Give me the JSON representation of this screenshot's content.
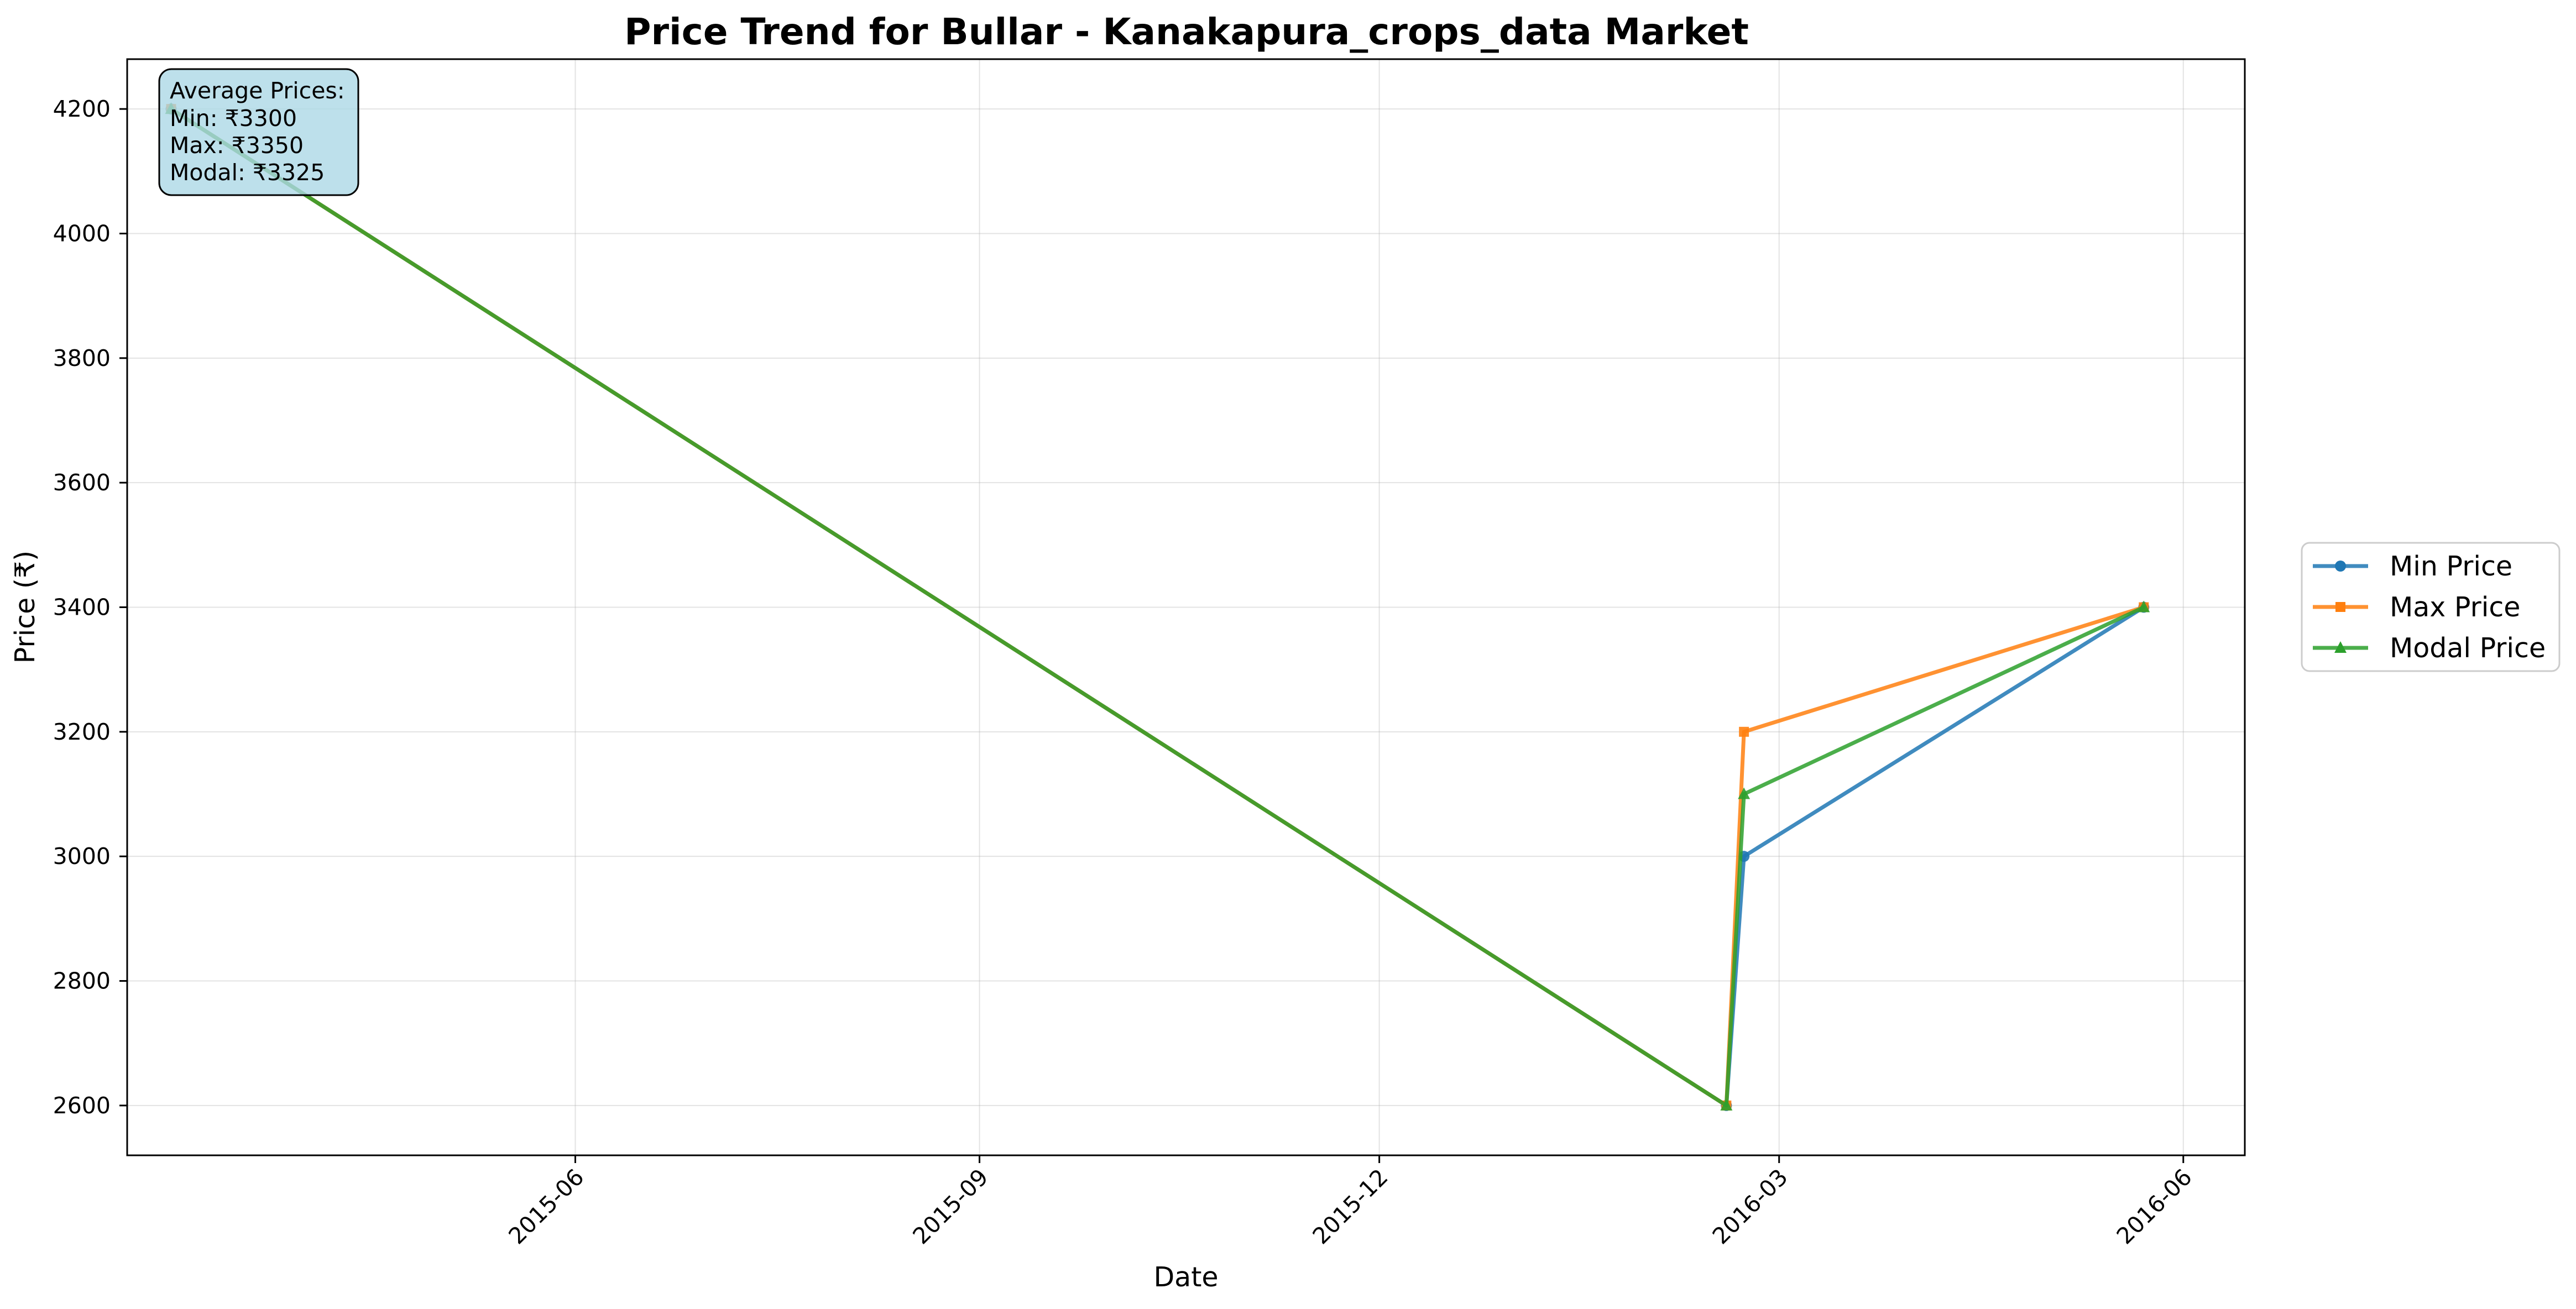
{
  "chart_data": {
    "type": "line",
    "title": "Price Trend for Bullar - Kanakapura_crops_data Market",
    "xlabel": "Date",
    "ylabel": "Price (₹)",
    "x_type": "date",
    "xlim": [
      "2015-02-19",
      "2016-06-15"
    ],
    "ylim": [
      2520,
      4280
    ],
    "x_ticks": [
      {
        "date": "2015-06-01",
        "label": "2015-06"
      },
      {
        "date": "2015-09-01",
        "label": "2015-09"
      },
      {
        "date": "2015-12-01",
        "label": "2015-12"
      },
      {
        "date": "2016-03-01",
        "label": "2016-03"
      },
      {
        "date": "2016-06-01",
        "label": "2016-06"
      }
    ],
    "y_ticks": [
      2600,
      2800,
      3000,
      3200,
      3400,
      3600,
      3800,
      4000,
      4200
    ],
    "grid": true,
    "legend_position": "outside-right",
    "series": [
      {
        "name": "Min Price",
        "color": "#1f77b4",
        "marker": "circle",
        "points": [
          [
            "2015-03-01",
            4200
          ],
          [
            "2016-02-18",
            2600
          ],
          [
            "2016-02-22",
            3000
          ],
          [
            "2016-05-23",
            3400
          ]
        ]
      },
      {
        "name": "Max Price",
        "color": "#ff7f0e",
        "marker": "square",
        "points": [
          [
            "2015-03-01",
            4200
          ],
          [
            "2016-02-18",
            2600
          ],
          [
            "2016-02-22",
            3200
          ],
          [
            "2016-05-23",
            3400
          ]
        ]
      },
      {
        "name": "Modal Price",
        "color": "#2ca02c",
        "marker": "triangle",
        "points": [
          [
            "2015-03-01",
            4200
          ],
          [
            "2016-02-18",
            2600
          ],
          [
            "2016-02-22",
            3100
          ],
          [
            "2016-05-23",
            3400
          ]
        ]
      }
    ],
    "annotation": {
      "lines": [
        "Average Prices:",
        "Min: ₹3300",
        "Max: ₹3350",
        "Modal: ₹3325"
      ],
      "background": "#add8e6"
    }
  }
}
